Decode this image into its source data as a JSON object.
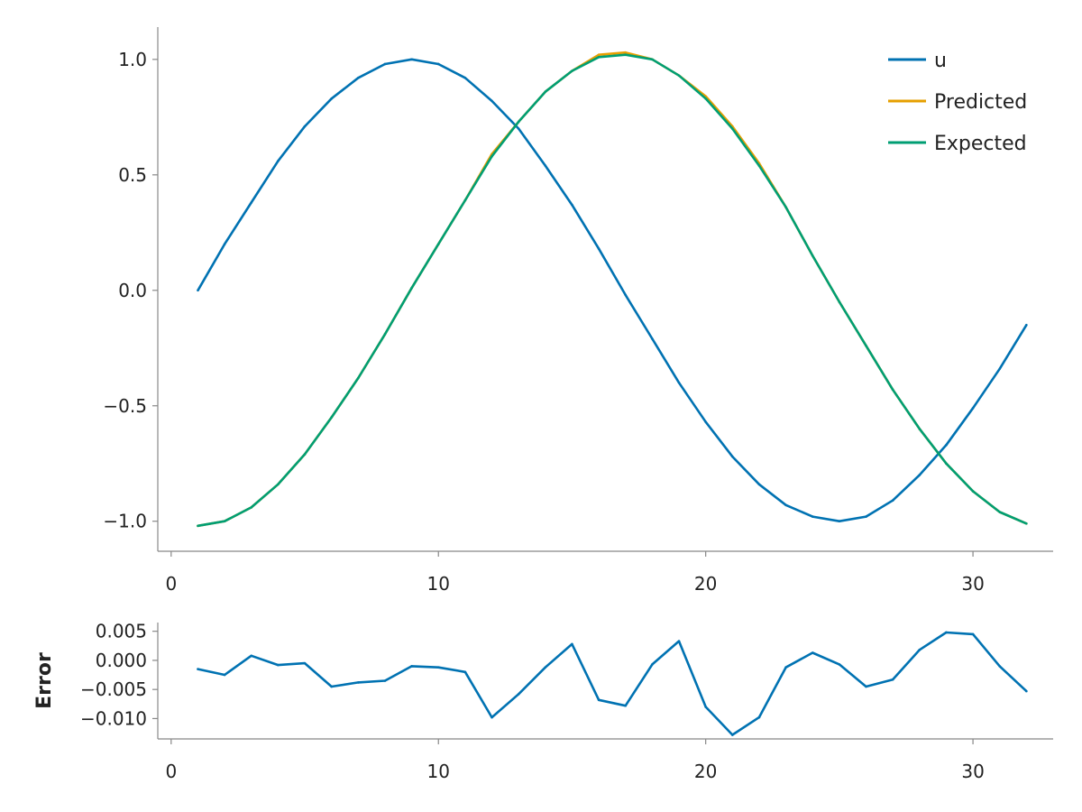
{
  "chart_data": [
    {
      "type": "line",
      "title": "",
      "xlabel": "",
      "ylabel": "",
      "xlim": [
        -0.5,
        33
      ],
      "ylim": [
        -1.13,
        1.14
      ],
      "xticks": [
        0,
        10,
        20,
        30
      ],
      "xtick_labels": [
        "0",
        "10",
        "20",
        "30"
      ],
      "yticks": [
        1.0,
        0.5,
        0.0,
        -0.5,
        -1.0
      ],
      "ytick_labels": [
        "1.0",
        "0.5",
        "0.0",
        "−0.5",
        "−1.0"
      ],
      "grid": false,
      "legend_position": "top-right",
      "x": [
        1,
        2,
        3,
        4,
        5,
        6,
        7,
        8,
        9,
        10,
        11,
        12,
        13,
        14,
        15,
        16,
        17,
        18,
        19,
        20,
        21,
        22,
        23,
        24,
        25,
        26,
        27,
        28,
        29,
        30,
        31,
        32
      ],
      "series": [
        {
          "name": "u",
          "color": "#0072b2",
          "values": [
            0.0,
            0.2,
            0.38,
            0.56,
            0.71,
            0.83,
            0.92,
            0.98,
            1.0,
            0.98,
            0.92,
            0.82,
            0.7,
            0.54,
            0.37,
            0.18,
            -0.02,
            -0.21,
            -0.4,
            -0.57,
            -0.72,
            -0.84,
            -0.93,
            -0.98,
            -1.0,
            -0.98,
            -0.91,
            -0.8,
            -0.67,
            -0.51,
            -0.34,
            -0.15
          ]
        },
        {
          "name": "Predicted",
          "color": "#e69f00",
          "values": [
            -1.02,
            -1.0,
            -0.94,
            -0.84,
            -0.71,
            -0.55,
            -0.38,
            -0.19,
            0.01,
            0.2,
            0.39,
            0.59,
            0.73,
            0.86,
            0.95,
            1.02,
            1.03,
            1.0,
            0.93,
            0.84,
            0.71,
            0.55,
            0.36,
            0.15,
            -0.05,
            -0.24,
            -0.43,
            -0.6,
            -0.75,
            -0.87,
            -0.96,
            -1.01
          ]
        },
        {
          "name": "Expected",
          "color": "#009e73",
          "values": [
            -1.02,
            -1.0,
            -0.94,
            -0.84,
            -0.71,
            -0.55,
            -0.38,
            -0.19,
            0.01,
            0.2,
            0.39,
            0.58,
            0.73,
            0.86,
            0.95,
            1.01,
            1.02,
            1.0,
            0.93,
            0.83,
            0.7,
            0.54,
            0.36,
            0.15,
            -0.05,
            -0.24,
            -0.43,
            -0.6,
            -0.75,
            -0.87,
            -0.96,
            -1.01
          ]
        }
      ]
    },
    {
      "type": "line",
      "title": "",
      "xlabel": "",
      "ylabel": "Error",
      "xlim": [
        -0.5,
        33
      ],
      "ylim": [
        -0.0135,
        0.0065
      ],
      "xticks": [
        0,
        10,
        20,
        30
      ],
      "xtick_labels": [
        "0",
        "10",
        "20",
        "30"
      ],
      "yticks": [
        0.005,
        0.0,
        -0.005,
        -0.01
      ],
      "ytick_labels": [
        "0.005",
        "0.000",
        "−0.005",
        "−0.010"
      ],
      "grid": false,
      "x": [
        1,
        2,
        3,
        4,
        5,
        6,
        7,
        8,
        9,
        10,
        11,
        12,
        13,
        14,
        15,
        16,
        17,
        18,
        19,
        20,
        21,
        22,
        23,
        24,
        25,
        26,
        27,
        28,
        29,
        30,
        31,
        32
      ],
      "series": [
        {
          "name": "",
          "color": "#0072b2",
          "values": [
            -0.0015,
            -0.0025,
            0.0008,
            -0.0008,
            -0.0005,
            -0.0045,
            -0.0038,
            -0.0035,
            -0.001,
            -0.0012,
            -0.002,
            -0.0098,
            -0.0058,
            -0.0012,
            0.0028,
            -0.0068,
            -0.0078,
            -0.0007,
            0.0033,
            -0.008,
            -0.0128,
            -0.0098,
            -0.0012,
            0.0013,
            -0.0007,
            -0.0045,
            -0.0033,
            0.0018,
            0.0048,
            0.0045,
            -0.001,
            -0.0053
          ]
        }
      ]
    }
  ]
}
